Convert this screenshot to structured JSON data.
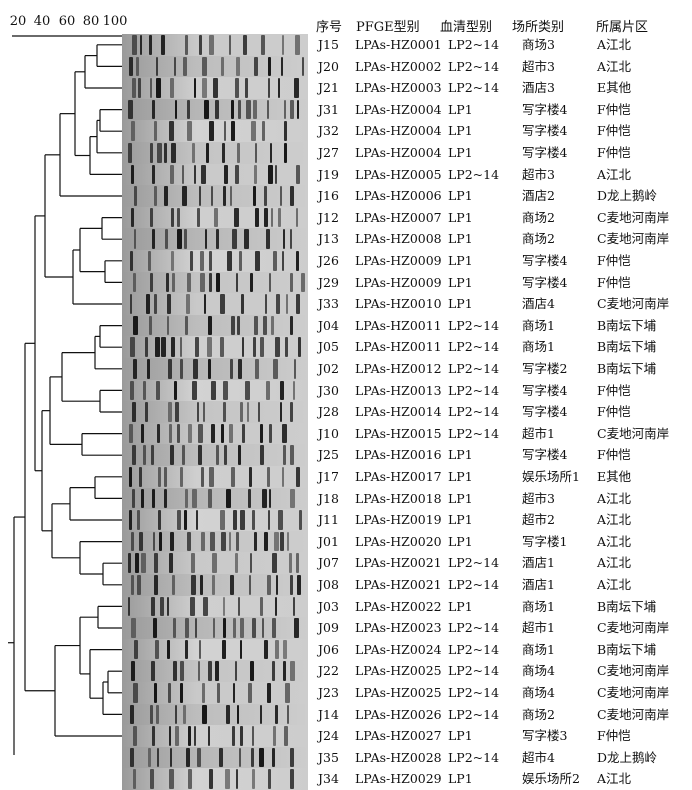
{
  "scale": {
    "ticks": [
      "20",
      "40",
      "60",
      "80",
      "100"
    ]
  },
  "headers": {
    "id": "序号",
    "pfge": "PFGE型别",
    "serogroup": "血清型别",
    "venue_type": "场所类别",
    "district": "所属片区"
  },
  "rows": [
    {
      "id": "J15",
      "pfge": "LPAs-HZ0001",
      "serogroup": "LP2~14",
      "venue": "商场3",
      "district": "A江北"
    },
    {
      "id": "J20",
      "pfge": "LPAs-HZ0002",
      "serogroup": "LP2~14",
      "venue": "超市3",
      "district": "A江北"
    },
    {
      "id": "J21",
      "pfge": "LPAs-HZ0003",
      "serogroup": "LP2~14",
      "venue": "酒店3",
      "district": "E其他"
    },
    {
      "id": "J31",
      "pfge": "LPAs-HZ0004",
      "serogroup": "LP1",
      "venue": "写字楼4",
      "district": "F仲恺"
    },
    {
      "id": "J32",
      "pfge": "LPAs-HZ0004",
      "serogroup": "LP1",
      "venue": "写字楼4",
      "district": "F仲恺"
    },
    {
      "id": "J27",
      "pfge": "LPAs-HZ0004",
      "serogroup": "LP1",
      "venue": "写字楼4",
      "district": "F仲恺"
    },
    {
      "id": "J19",
      "pfge": "LPAs-HZ0005",
      "serogroup": "LP2~14",
      "venue": "超市3",
      "district": "A江北"
    },
    {
      "id": "J16",
      "pfge": "LPAs-HZ0006",
      "serogroup": "LP1",
      "venue": "酒店2",
      "district": "D龙上鹅岭"
    },
    {
      "id": "J12",
      "pfge": "LPAs-HZ0007",
      "serogroup": "LP1",
      "venue": "商场2",
      "district": "C麦地河南岸"
    },
    {
      "id": "J13",
      "pfge": "LPAs-HZ0008",
      "serogroup": "LP1",
      "venue": "商场2",
      "district": "C麦地河南岸"
    },
    {
      "id": "J26",
      "pfge": "LPAs-HZ0009",
      "serogroup": "LP1",
      "venue": "写字楼4",
      "district": "F仲恺"
    },
    {
      "id": "J29",
      "pfge": "LPAs-HZ0009",
      "serogroup": "LP1",
      "venue": "写字楼4",
      "district": "F仲恺"
    },
    {
      "id": "J33",
      "pfge": "LPAs-HZ0010",
      "serogroup": "LP1",
      "venue": "酒店4",
      "district": "C麦地河南岸"
    },
    {
      "id": "J04",
      "pfge": "LPAs-HZ0011",
      "serogroup": "LP2~14",
      "venue": "商场1",
      "district": "B南坛下埔"
    },
    {
      "id": "J05",
      "pfge": "LPAs-HZ0011",
      "serogroup": "LP2~14",
      "venue": "商场1",
      "district": "B南坛下埔"
    },
    {
      "id": "J02",
      "pfge": "LPAs-HZ0012",
      "serogroup": "LP2~14",
      "venue": "写字楼2",
      "district": "B南坛下埔"
    },
    {
      "id": "J30",
      "pfge": "LPAs-HZ0013",
      "serogroup": "LP2~14",
      "venue": "写字楼4",
      "district": "F仲恺"
    },
    {
      "id": "J28",
      "pfge": "LPAs-HZ0014",
      "serogroup": "LP2~14",
      "venue": "写字楼4",
      "district": "F仲恺"
    },
    {
      "id": "J10",
      "pfge": "LPAs-HZ0015",
      "serogroup": "LP2~14",
      "venue": "超市1",
      "district": "C麦地河南岸"
    },
    {
      "id": "J25",
      "pfge": "LPAs-HZ0016",
      "serogroup": "LP1",
      "venue": "写字楼4",
      "district": "F仲恺"
    },
    {
      "id": "J17",
      "pfge": "LPAs-HZ0017",
      "serogroup": "LP1",
      "venue": "娱乐场所1",
      "district": "E其他"
    },
    {
      "id": "J18",
      "pfge": "LPAs-HZ0018",
      "serogroup": "LP1",
      "venue": "超市3",
      "district": "A江北"
    },
    {
      "id": "J11",
      "pfge": "LPAs-HZ0019",
      "serogroup": "LP1",
      "venue": "超市2",
      "district": "A江北"
    },
    {
      "id": "J01",
      "pfge": "LPAs-HZ0020",
      "serogroup": "LP1",
      "venue": "写字楼1",
      "district": "A江北"
    },
    {
      "id": "J07",
      "pfge": "LPAs-HZ0021",
      "serogroup": "LP2~14",
      "venue": "酒店1",
      "district": "A江北"
    },
    {
      "id": "J08",
      "pfge": "LPAs-HZ0021",
      "serogroup": "LP2~14",
      "venue": "酒店1",
      "district": "A江北"
    },
    {
      "id": "J03",
      "pfge": "LPAs-HZ0022",
      "serogroup": "LP1",
      "venue": "商场1",
      "district": "B南坛下埔"
    },
    {
      "id": "J09",
      "pfge": "LPAs-HZ0023",
      "serogroup": "LP2~14",
      "venue": "超市1",
      "district": "C麦地河南岸"
    },
    {
      "id": "J06",
      "pfge": "LPAs-HZ0024",
      "serogroup": "LP2~14",
      "venue": "商场1",
      "district": "B南坛下埔"
    },
    {
      "id": "J22",
      "pfge": "LPAs-HZ0025",
      "serogroup": "LP2~14",
      "venue": "商场4",
      "district": "C麦地河南岸"
    },
    {
      "id": "J23",
      "pfge": "LPAs-HZ0025",
      "serogroup": "LP2~14",
      "venue": "商场4",
      "district": "C麦地河南岸"
    },
    {
      "id": "J14",
      "pfge": "LPAs-HZ0026",
      "serogroup": "LP2~14",
      "venue": "商场2",
      "district": "C麦地河南岸"
    },
    {
      "id": "J24",
      "pfge": "LPAs-HZ0027",
      "serogroup": "LP1",
      "venue": "写字楼3",
      "district": "F仲恺"
    },
    {
      "id": "J35",
      "pfge": "LPAs-HZ0028",
      "serogroup": "LP2~14",
      "venue": "超市4",
      "district": "D龙上鹅岭"
    },
    {
      "id": "J34",
      "pfge": "LPAs-HZ0029",
      "serogroup": "LP1",
      "venue": "娱乐场所2",
      "district": "A江北"
    }
  ]
}
